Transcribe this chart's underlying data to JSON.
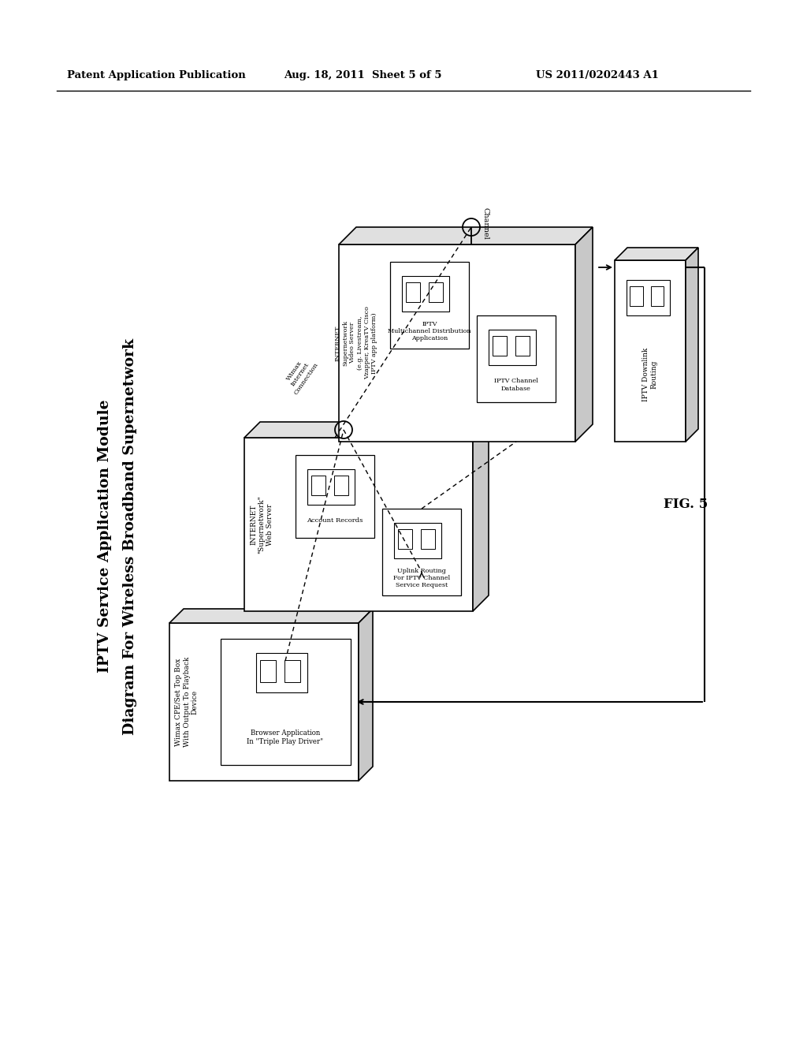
{
  "bg_color": "#ffffff",
  "header_left": "Patent Application Publication",
  "header_mid": "Aug. 18, 2011  Sheet 5 of 5",
  "header_right": "US 2011/0202443 A1",
  "title_line1": "Diagram For Wireless Broadband Supernetwork",
  "title_line2": "IPTV Service Application Module",
  "fig_label": "FIG. 5",
  "box1_label": "Wimax CPE/Set Top Box\nWith Output To Playback\nDevice",
  "box1_inner_label": "Browser Application\nIn \"Triple Play Driver\"",
  "box2_label": "INTERNET\n\"Supernetwork\"\nWeb Server",
  "box2_inner1_label": "Account Records",
  "box2_inner2_label": "Uplink Routing\nFor IPTV Channel\nService Request",
  "box3_label": "INTERNET\nSupernetwork\nVideo Server\n(e.g. Livestream,\nVzapper, KreaTV Cisco\nIPTV app platform)",
  "box3_inner1_label": "IPTV\nMultichannel Distribution\nApplication",
  "box3_inner2_label": "IPTV Channel\nDatabase",
  "box4_label": "IPTV Downlink\nRouting",
  "channel_label": "Channel",
  "wimax_label": "Wimax\nInternet\nConnection"
}
